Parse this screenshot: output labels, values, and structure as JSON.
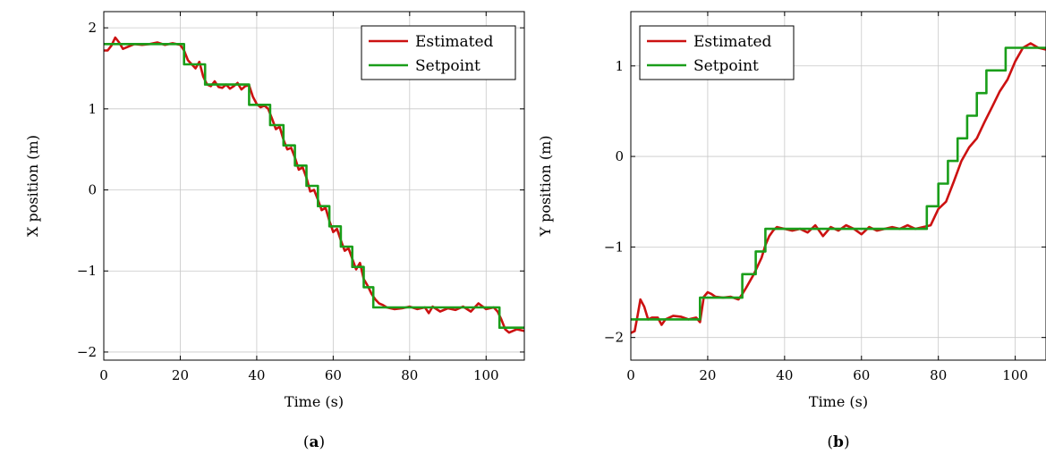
{
  "chart_data": [
    {
      "type": "line",
      "panel": "a",
      "panel_label": "(a)",
      "title": "",
      "xlabel": "Time (s)",
      "ylabel": "X position (m)",
      "xlim": [
        0,
        110
      ],
      "ylim": [
        -2.1,
        2.2
      ],
      "xticks": [
        0,
        20,
        40,
        60,
        80,
        100
      ],
      "yticks": [
        -2,
        -1,
        0,
        1,
        2
      ],
      "grid": true,
      "legend_position": "top-right",
      "series": [
        {
          "name": "Estimated",
          "color": "#cc1111",
          "x": [
            0,
            1,
            2,
            3,
            4,
            5,
            6,
            8,
            10,
            12,
            14,
            16,
            18,
            20,
            21,
            22,
            23,
            24,
            25,
            26,
            27,
            28,
            29,
            30,
            31,
            32,
            33,
            34,
            35,
            36,
            37,
            38,
            39,
            40,
            41,
            42,
            43,
            44,
            45,
            46,
            47,
            48,
            49,
            50,
            51,
            52,
            53,
            54,
            55,
            56,
            57,
            58,
            59,
            60,
            61,
            62,
            63,
            64,
            65,
            66,
            67,
            68,
            69,
            70,
            71,
            72,
            73,
            74,
            75,
            76,
            78,
            80,
            82,
            84,
            85,
            86,
            88,
            90,
            92,
            94,
            96,
            98,
            100,
            102,
            103,
            104,
            105,
            106,
            107,
            108,
            110
          ],
          "y": [
            1.72,
            1.72,
            1.78,
            1.88,
            1.82,
            1.74,
            1.76,
            1.8,
            1.79,
            1.8,
            1.82,
            1.79,
            1.81,
            1.79,
            1.72,
            1.6,
            1.55,
            1.5,
            1.58,
            1.4,
            1.3,
            1.28,
            1.34,
            1.27,
            1.26,
            1.3,
            1.25,
            1.28,
            1.32,
            1.24,
            1.28,
            1.29,
            1.15,
            1.06,
            1.02,
            1.04,
            1.0,
            0.88,
            0.75,
            0.78,
            0.62,
            0.5,
            0.52,
            0.4,
            0.25,
            0.28,
            0.15,
            -0.02,
            0.0,
            -0.12,
            -0.25,
            -0.22,
            -0.38,
            -0.52,
            -0.48,
            -0.62,
            -0.75,
            -0.72,
            -0.85,
            -0.98,
            -0.9,
            -1.1,
            -1.18,
            -1.28,
            -1.35,
            -1.4,
            -1.42,
            -1.45,
            -1.46,
            -1.47,
            -1.46,
            -1.44,
            -1.47,
            -1.45,
            -1.52,
            -1.44,
            -1.5,
            -1.46,
            -1.48,
            -1.44,
            -1.5,
            -1.4,
            -1.47,
            -1.45,
            -1.5,
            -1.6,
            -1.72,
            -1.76,
            -1.74,
            -1.72,
            -1.74
          ]
        },
        {
          "name": "Setpoint",
          "color": "#1a9e1a",
          "x": [
            0,
            21,
            21,
            26.5,
            26.5,
            38,
            38,
            43.5,
            43.5,
            47,
            47,
            50,
            50,
            53,
            53,
            56,
            56,
            59,
            59,
            62,
            62,
            65,
            65,
            68,
            68,
            70.5,
            70.5,
            73,
            73,
            103.5,
            103.5,
            110
          ],
          "y": [
            1.8,
            1.8,
            1.55,
            1.55,
            1.3,
            1.3,
            1.05,
            1.05,
            0.8,
            0.8,
            0.55,
            0.55,
            0.3,
            0.3,
            0.05,
            0.05,
            -0.2,
            -0.2,
            -0.45,
            -0.45,
            -0.7,
            -0.7,
            -0.95,
            -0.95,
            -1.2,
            -1.2,
            -1.45,
            -1.45,
            -1.45,
            -1.45,
            -1.7,
            -1.7
          ]
        }
      ]
    },
    {
      "type": "line",
      "panel": "b",
      "panel_label": "(b)",
      "title": "",
      "xlabel": "Time (s)",
      "ylabel": "Y position (m)",
      "xlim": [
        0,
        108
      ],
      "ylim": [
        -2.25,
        1.6
      ],
      "xticks": [
        0,
        20,
        40,
        60,
        80,
        100
      ],
      "yticks": [
        -2,
        -1,
        0,
        1
      ],
      "grid": true,
      "legend_position": "top-left",
      "series": [
        {
          "name": "Estimated",
          "color": "#cc1111",
          "x": [
            0,
            1,
            1.8,
            2.5,
            3.5,
            4.5,
            5.5,
            7,
            8,
            9,
            11,
            13,
            15,
            17,
            18,
            19,
            20,
            21,
            22,
            24,
            26,
            28,
            29,
            30,
            32,
            34,
            35,
            36,
            37,
            38,
            40,
            42,
            44,
            46,
            48,
            50,
            52,
            54,
            56,
            58,
            60,
            62,
            64,
            66,
            68,
            70,
            72,
            74,
            76,
            78,
            80,
            82,
            84,
            86,
            88,
            90,
            92,
            94,
            96,
            98,
            100,
            102,
            104,
            106,
            108
          ],
          "y": [
            -1.95,
            -1.93,
            -1.75,
            -1.58,
            -1.66,
            -1.8,
            -1.78,
            -1.78,
            -1.86,
            -1.8,
            -1.76,
            -1.77,
            -1.8,
            -1.78,
            -1.83,
            -1.55,
            -1.5,
            -1.52,
            -1.55,
            -1.56,
            -1.55,
            -1.58,
            -1.52,
            -1.45,
            -1.3,
            -1.12,
            -0.98,
            -0.88,
            -0.82,
            -0.78,
            -0.8,
            -0.82,
            -0.8,
            -0.84,
            -0.76,
            -0.88,
            -0.78,
            -0.82,
            -0.76,
            -0.8,
            -0.86,
            -0.78,
            -0.82,
            -0.8,
            -0.78,
            -0.8,
            -0.76,
            -0.8,
            -0.78,
            -0.76,
            -0.58,
            -0.5,
            -0.28,
            -0.05,
            0.1,
            0.2,
            0.38,
            0.55,
            0.72,
            0.85,
            1.05,
            1.2,
            1.25,
            1.2,
            1.18
          ]
        },
        {
          "name": "Setpoint",
          "color": "#1a9e1a",
          "x": [
            0,
            18,
            18,
            29,
            29,
            32.5,
            32.5,
            35,
            35,
            77,
            77,
            80,
            80,
            82.5,
            82.5,
            85,
            85,
            87.5,
            87.5,
            90,
            90,
            92.5,
            92.5,
            95,
            95,
            97.5,
            97.5,
            100,
            100,
            108
          ],
          "y": [
            -1.8,
            -1.8,
            -1.56,
            -1.56,
            -1.3,
            -1.3,
            -1.05,
            -1.05,
            -0.8,
            -0.8,
            -0.55,
            -0.55,
            -0.3,
            -0.3,
            -0.05,
            -0.05,
            0.2,
            0.2,
            0.45,
            0.45,
            0.7,
            0.7,
            0.95,
            0.95,
            0.95,
            0.95,
            1.2,
            1.2,
            1.2,
            1.2
          ]
        }
      ]
    }
  ]
}
